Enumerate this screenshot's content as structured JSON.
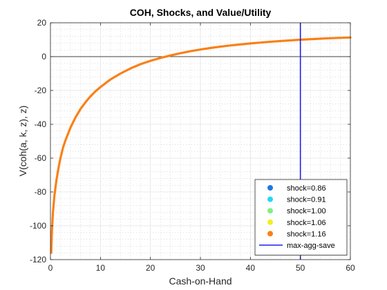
{
  "chart_data": {
    "type": "line",
    "title": "COH, Shocks, and Value/Utility",
    "xlabel": "Cash-on-Hand",
    "ylabel": "V(coh(a, k, z), z)",
    "xlim": [
      0,
      60
    ],
    "ylim": [
      -120,
      20
    ],
    "xticks": [
      0,
      10,
      20,
      30,
      40,
      50,
      60
    ],
    "yticks": [
      -120,
      -100,
      -80,
      -60,
      -40,
      -20,
      0,
      20
    ],
    "grid": "minor-dotted",
    "zero_line": 0,
    "legend_position": "bottom-right",
    "series": [
      {
        "name": "shock=0.86",
        "color": "#1f77e8",
        "marker": "dot",
        "x": [],
        "y": []
      },
      {
        "name": "shock=0.91",
        "color": "#22d8f0",
        "marker": "dot",
        "x": [],
        "y": []
      },
      {
        "name": "shock=1.00",
        "color": "#7ff07f",
        "marker": "dot",
        "x": [],
        "y": []
      },
      {
        "name": "shock=1.06",
        "color": "#f0f020",
        "marker": "dot",
        "x": [],
        "y": []
      },
      {
        "name": "shock=1.16",
        "color": "#f98016",
        "marker": "dot",
        "x": [
          0.15,
          0.3,
          0.5,
          0.8,
          1.2,
          1.6,
          2,
          2.5,
          3,
          4,
          5,
          6,
          7,
          8,
          9,
          10,
          12,
          14,
          16,
          18,
          20,
          22,
          24,
          26,
          28,
          30,
          32,
          34,
          36,
          38,
          40,
          42,
          44,
          46,
          48,
          50,
          52,
          54,
          56,
          58,
          60
        ],
        "y": [
          -116,
          -103,
          -92,
          -82,
          -73,
          -66,
          -60,
          -54,
          -49.5,
          -42,
          -36,
          -31,
          -27,
          -23.5,
          -20.5,
          -18,
          -13.5,
          -10,
          -7,
          -4.5,
          -2.5,
          -0.8,
          0.7,
          2,
          3.2,
          4.2,
          5.1,
          5.9,
          6.6,
          7.2,
          7.8,
          8.3,
          8.8,
          9.2,
          9.6,
          10,
          10.3,
          10.6,
          10.9,
          11.1,
          11.3
        ]
      }
    ],
    "vertical_line": {
      "name": "max-agg-save",
      "x": 50,
      "color": "#1f1fe8"
    }
  }
}
